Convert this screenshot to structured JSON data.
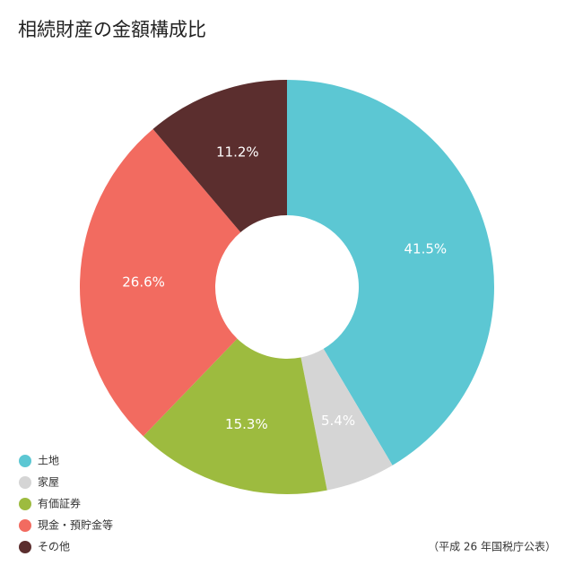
{
  "chart_data": {
    "type": "donut",
    "title": "相続財産の金額構成比",
    "categories": [
      "土地",
      "家屋",
      "有価証券",
      "現金・預貯金等",
      "その他"
    ],
    "values": [
      41.5,
      5.4,
      15.3,
      26.6,
      11.2
    ],
    "value_labels": [
      "41.5%",
      "5.4%",
      "15.3%",
      "26.6%",
      "11.2%"
    ],
    "colors": [
      "#5cc7d3",
      "#d5d5d5",
      "#9dbb3f",
      "#f26b60",
      "#5b2e2e"
    ],
    "note": "（平成 26 年国税庁公表）"
  }
}
